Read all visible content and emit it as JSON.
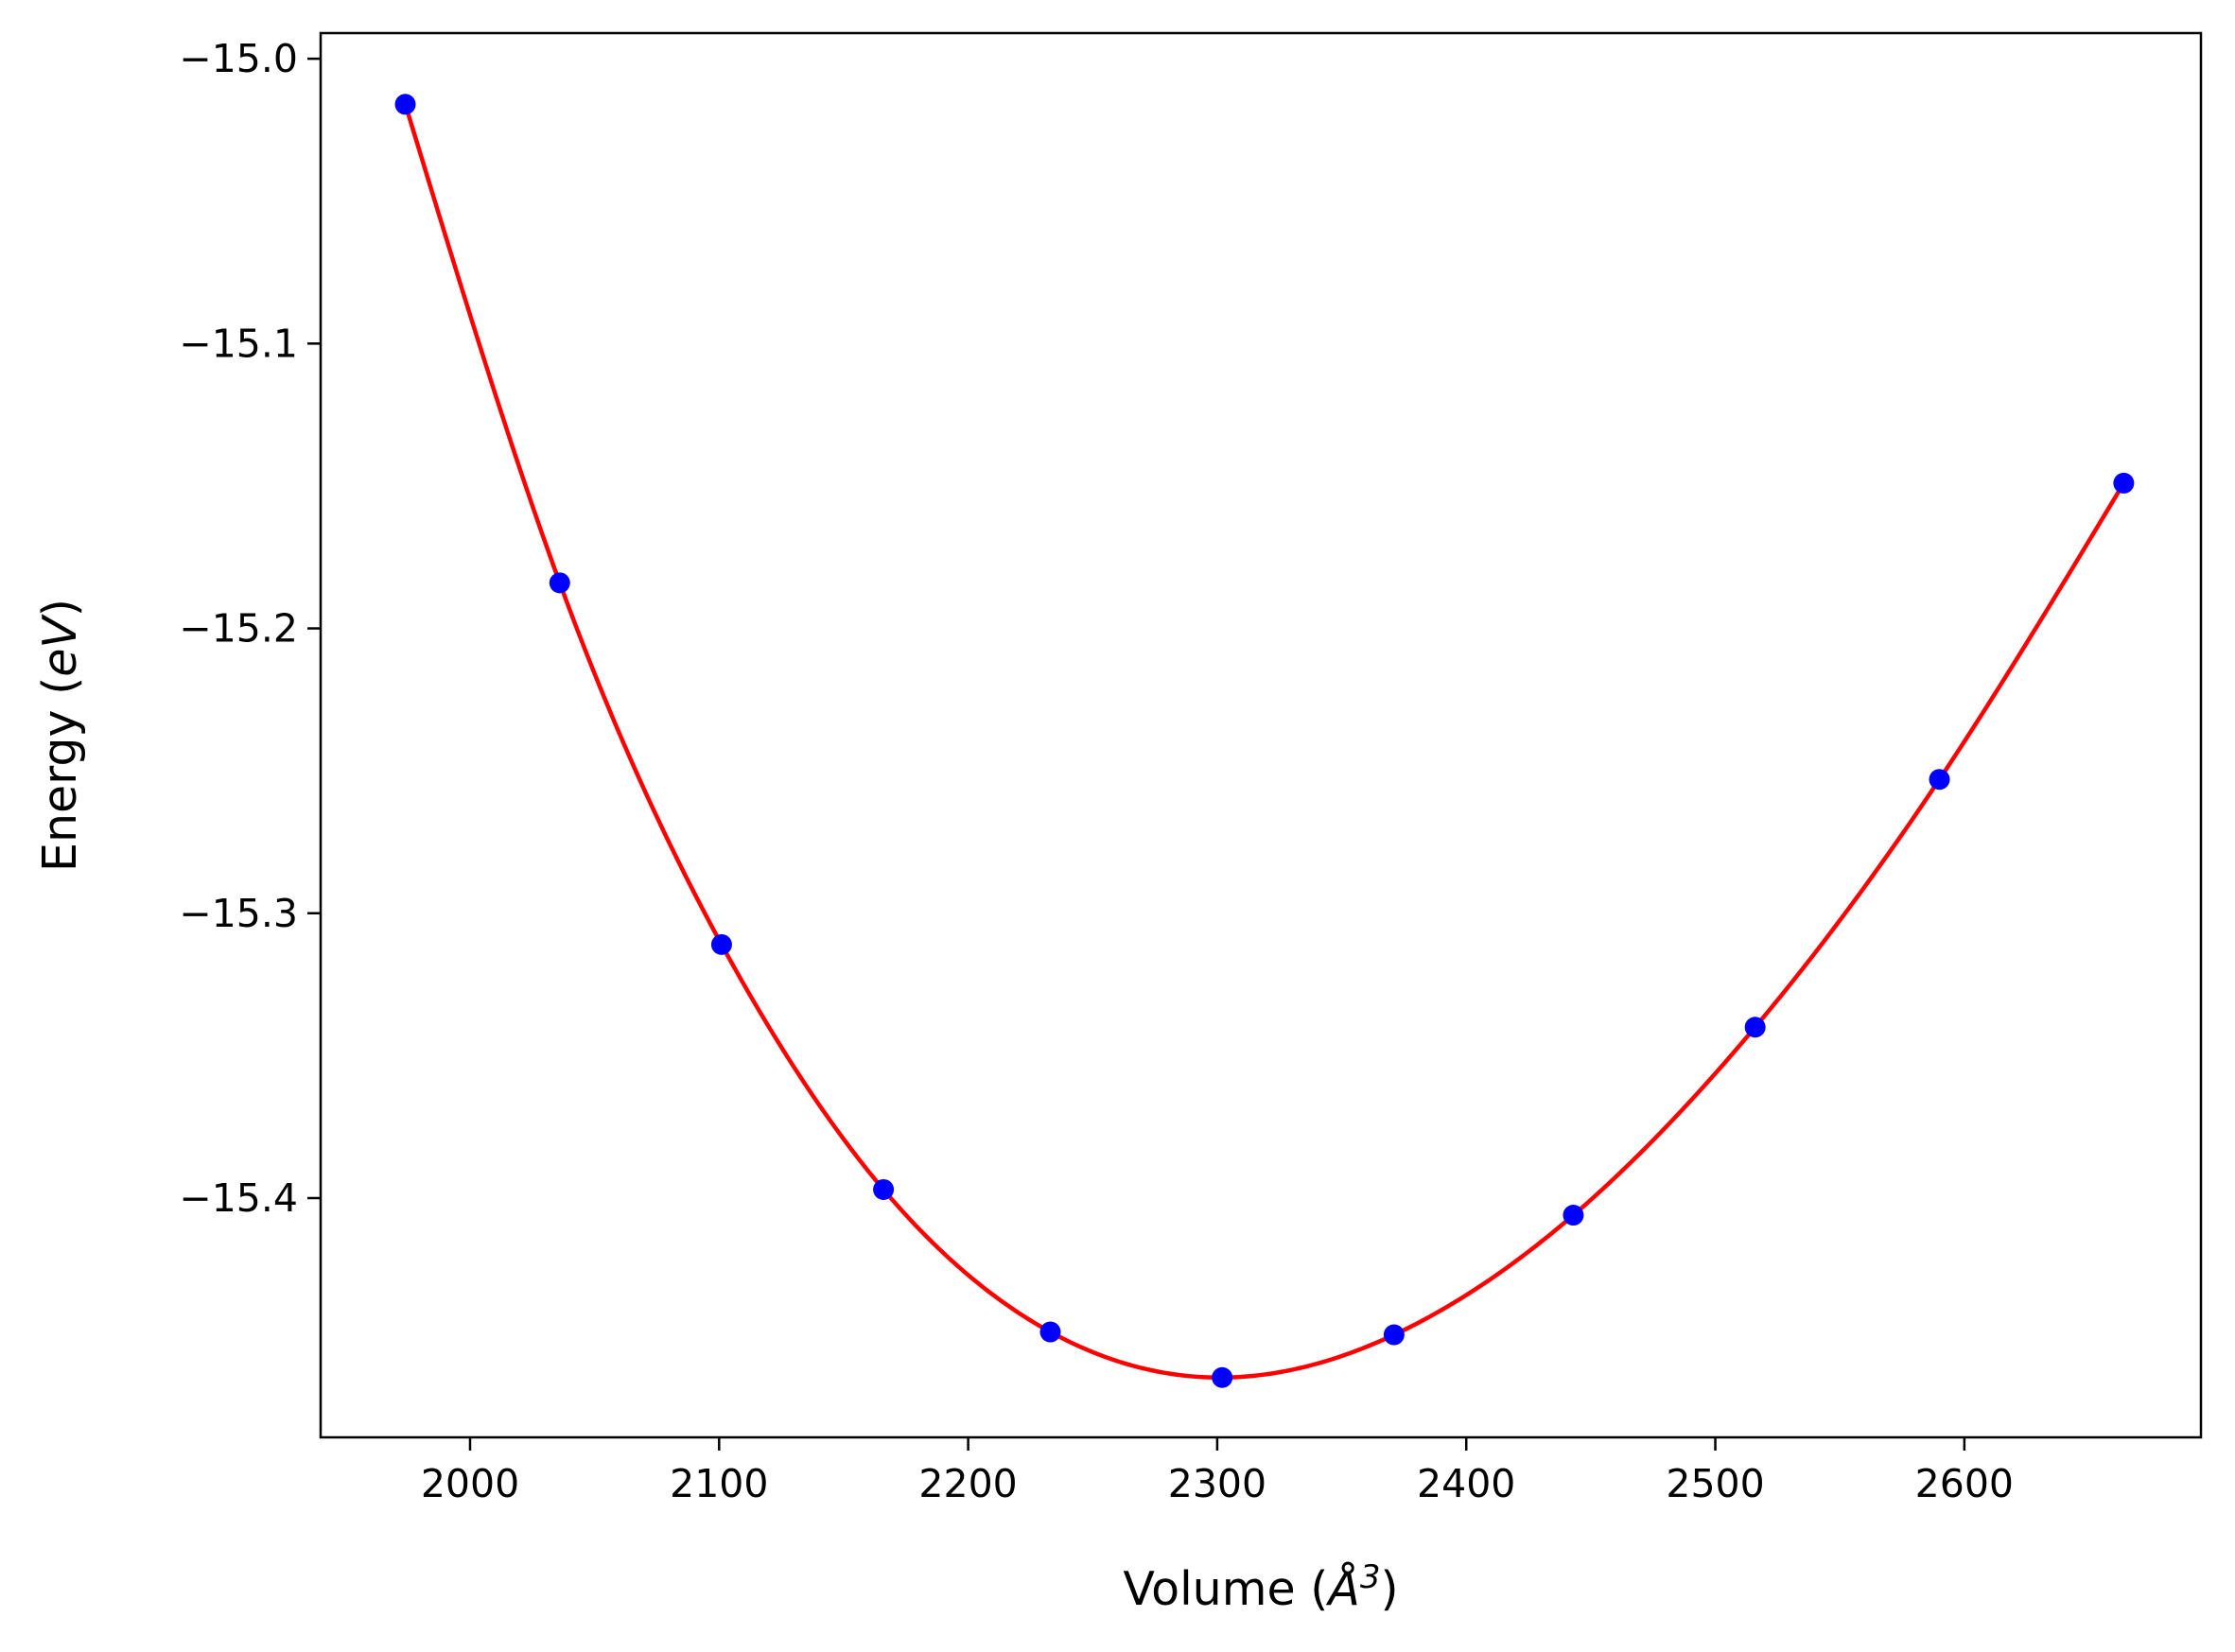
{
  "chart_data": {
    "type": "scatter",
    "title": "",
    "xlabel": "Volume (Å³)",
    "xlabel_parts": {
      "prefix": "Volume (",
      "symbol": "Å",
      "exponent": "3",
      "suffix": ")"
    },
    "ylabel": "Energy (eV)",
    "ylabel_parts": {
      "prefix": "Energy (",
      "unit": "eV",
      "suffix": ")"
    },
    "xlim": [
      1940,
      2695
    ],
    "ylim": [
      -15.484,
      -14.991
    ],
    "xticks": [
      2000,
      2100,
      2200,
      2300,
      2400,
      2500,
      2600
    ],
    "xtick_labels": [
      "2000",
      "2100",
      "2200",
      "2300",
      "2400",
      "2500",
      "2600"
    ],
    "yticks": [
      -15.0,
      -15.1,
      -15.2,
      -15.3,
      -15.4
    ],
    "ytick_labels": [
      "−15.0",
      "−15.1",
      "−15.2",
      "−15.3",
      "−15.4"
    ],
    "grid": false,
    "legend": "none",
    "series": [
      {
        "kind": "points",
        "color": "#0000ff",
        "x": [
          1974,
          2036,
          2101,
          2166,
          2233,
          2302,
          2371,
          2443,
          2516,
          2590,
          2664
        ],
        "y": [
          -15.016,
          -15.184,
          -15.311,
          -15.397,
          -15.447,
          -15.463,
          -15.448,
          -15.406,
          -15.34,
          -15.253,
          -15.149
        ]
      },
      {
        "kind": "fit-curve",
        "color": "#ff0000",
        "x": [
          1974,
          2036,
          2101,
          2166,
          2233,
          2302,
          2371,
          2443,
          2516,
          2590,
          2664
        ],
        "y": [
          -15.016,
          -15.184,
          -15.311,
          -15.397,
          -15.447,
          -15.463,
          -15.448,
          -15.406,
          -15.34,
          -15.253,
          -15.149
        ]
      }
    ]
  }
}
